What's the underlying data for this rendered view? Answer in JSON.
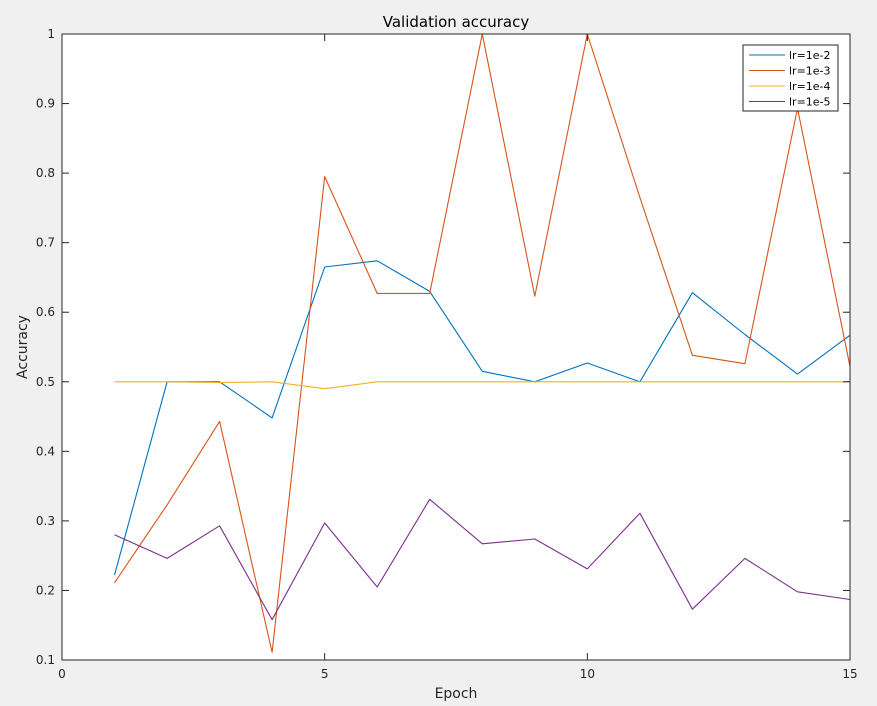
{
  "chart_data": {
    "type": "line",
    "title": "Validation accuracy",
    "xlabel": "Epoch",
    "ylabel": "Accuracy",
    "xlim": [
      0,
      15
    ],
    "ylim": [
      0.1,
      1
    ],
    "xticks": [
      0,
      5,
      10,
      15
    ],
    "yticks": [
      0.1,
      0.2,
      0.3,
      0.4,
      0.5,
      0.6,
      0.7,
      0.8,
      0.9,
      1
    ],
    "ytick_labels": [
      "0.1",
      "0.2",
      "0.3",
      "0.4",
      "0.5",
      "0.6",
      "0.7",
      "0.8",
      "0.9",
      "1"
    ],
    "grid": false,
    "legend_position": "top-right",
    "x": [
      1,
      2,
      3,
      4,
      5,
      6,
      7,
      8,
      9,
      10,
      11,
      12,
      13,
      14,
      15
    ],
    "series": [
      {
        "name": "lr=1e-2",
        "color": "#0072BD",
        "values": [
          0.222,
          0.5,
          0.5,
          0.448,
          0.665,
          0.674,
          0.63,
          0.515,
          0.5,
          0.527,
          0.5,
          0.628,
          0.568,
          0.511,
          0.567
        ]
      },
      {
        "name": "lr=1e-3",
        "color": "#D95319",
        "values": [
          0.211,
          0.323,
          0.443,
          0.111,
          0.795,
          0.627,
          0.627,
          1.0,
          0.623,
          1.0,
          0.765,
          0.538,
          0.526,
          0.893,
          0.522
        ]
      },
      {
        "name": "lr=1e-4",
        "color": "#EDB120",
        "values": [
          0.5,
          0.5,
          0.499,
          0.5,
          0.49,
          0.5,
          0.5,
          0.5,
          0.5,
          0.5,
          0.5,
          0.5,
          0.5,
          0.5,
          0.5
        ]
      },
      {
        "name": "lr=1e-5",
        "color": "#7E2F8E",
        "values": [
          0.28,
          0.246,
          0.293,
          0.158,
          0.297,
          0.205,
          0.331,
          0.267,
          0.274,
          0.231,
          0.311,
          0.173,
          0.246,
          0.198,
          0.187
        ]
      }
    ]
  }
}
